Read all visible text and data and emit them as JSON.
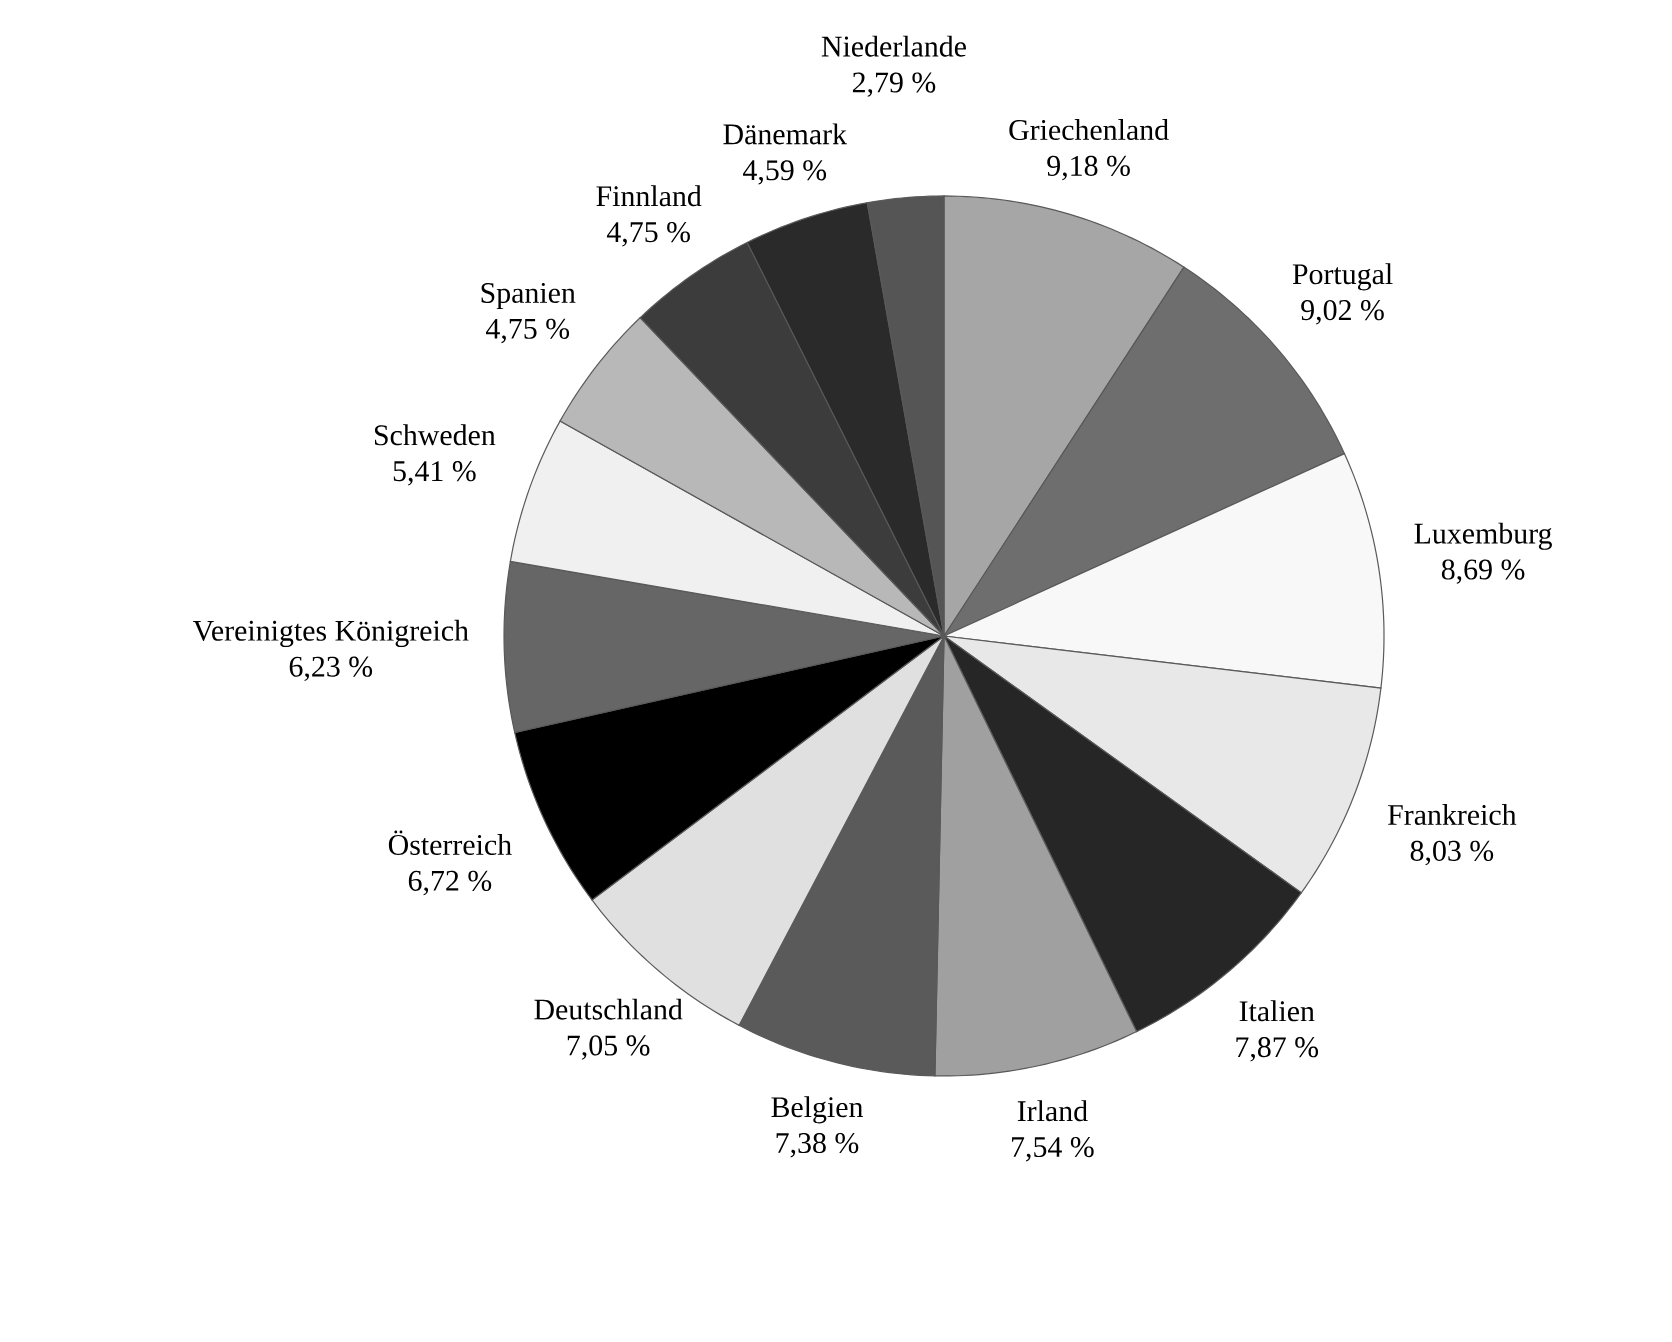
{
  "chart_data": {
    "type": "pie",
    "categories": [
      "Griechenland",
      "Portugal",
      "Luxemburg",
      "Frankreich",
      "Italien",
      "Irland",
      "Belgien",
      "Deutschland",
      "Österreich",
      "Vereinigtes Königreich",
      "Schweden",
      "Spanien",
      "Finnland",
      "Dänemark",
      "Niederlande"
    ],
    "values": [
      9.18,
      9.02,
      8.69,
      8.03,
      7.87,
      7.54,
      7.38,
      7.05,
      6.72,
      6.23,
      5.41,
      4.75,
      4.75,
      4.59,
      2.79
    ],
    "value_labels": [
      "9,18 %",
      "9,02 %",
      "8,69 %",
      "8,03 %",
      "7,87 %",
      "7,54 %",
      "7,38 %",
      "7,05 %",
      "6,72 %",
      "6,23 %",
      "5,41 %",
      "4,75 %",
      "4,75 %",
      "4,59 %",
      "2,79 %"
    ],
    "colors": [
      "#a6a6a6",
      "#6e6e6e",
      "#f8f8f8",
      "#e8e8e8",
      "#262626",
      "#a0a0a0",
      "#5a5a5a",
      "#e0e0e0",
      "#000000",
      "#666666",
      "#f0f0f0",
      "#b8b8b8",
      "#3c3c3c",
      "#2a2a2a",
      "#555555"
    ]
  }
}
